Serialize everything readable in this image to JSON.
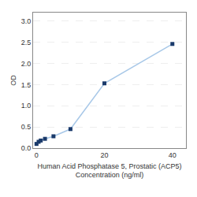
{
  "chart_data": {
    "type": "line",
    "x_label": "Human Acid Phosphatase 5, Prostatic (ACP5)\nConcentration (ng/ml)",
    "y_label": "OD",
    "x": [
      0,
      0.625,
      1.25,
      2.5,
      5,
      10,
      20,
      40
    ],
    "values": [
      0.1,
      0.15,
      0.18,
      0.22,
      0.28,
      0.45,
      1.53,
      2.46
    ],
    "color": "#a8c8e8",
    "colors": [
      "#1a3a6b",
      "#1a3a6b",
      "#1a3a6b",
      "#1a3a6b",
      "#1a3a6b",
      "#1a3a6b",
      "#1a3a6b",
      "#1a3a6b"
    ],
    "marker": "square",
    "xlim": [
      -1,
      44
    ],
    "ylim": [
      0,
      3.2
    ],
    "xticks": [
      0,
      20,
      40
    ],
    "yticks": [
      {
        "value": 0,
        "label": "0.0"
      },
      0.5,
      {
        "value": 1,
        "label": "1.0"
      },
      1.5,
      {
        "value": 2,
        "label": "2.0"
      },
      2.5,
      {
        "value": 3,
        "label": "3.0"
      }
    ],
    "grid": "y"
  }
}
